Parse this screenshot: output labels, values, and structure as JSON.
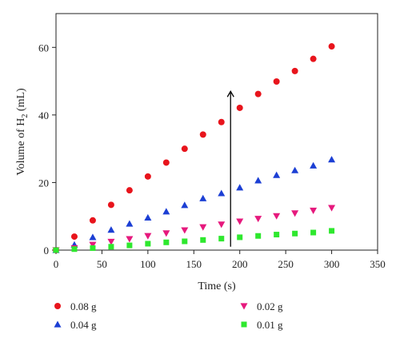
{
  "chart_data": {
    "type": "scatter",
    "xlabel": "Time (s)",
    "ylabel": {
      "prefix": "Volume of H",
      "sub": "2",
      "suffix": " (mL)"
    },
    "xlim": [
      0,
      350
    ],
    "ylim": [
      0,
      70
    ],
    "x_ticks": [
      0,
      50,
      100,
      150,
      200,
      250,
      300,
      350
    ],
    "y_ticks": [
      0,
      20,
      40,
      60
    ],
    "grid": false,
    "legend_placement": "bottom",
    "series": [
      {
        "name": "0.08 g",
        "marker": "circle",
        "color": "#e8141c",
        "x": [
          0,
          20,
          40,
          60,
          80,
          100,
          120,
          140,
          160,
          180,
          200,
          220,
          240,
          260,
          280,
          300
        ],
        "y": [
          0,
          4.0,
          8.8,
          13.4,
          17.7,
          21.8,
          25.9,
          30.0,
          34.2,
          37.9,
          42.1,
          46.2,
          49.9,
          53.0,
          56.6,
          60.3
        ]
      },
      {
        "name": "0.04 g",
        "marker": "triangle-up",
        "color": "#1c3fd4",
        "x": [
          0,
          20,
          40,
          60,
          80,
          100,
          120,
          140,
          160,
          180,
          200,
          220,
          240,
          260,
          280,
          300
        ],
        "y": [
          0,
          1.6,
          3.8,
          6.0,
          7.8,
          9.6,
          11.4,
          13.3,
          15.3,
          16.8,
          18.5,
          20.6,
          22.2,
          23.6,
          25.0,
          26.8
        ]
      },
      {
        "name": "0.02 g",
        "marker": "triangle-down",
        "color": "#e6197d",
        "x": [
          0,
          20,
          40,
          60,
          80,
          100,
          120,
          140,
          160,
          180,
          200,
          220,
          240,
          260,
          280,
          300
        ],
        "y": [
          0,
          0.6,
          1.6,
          2.5,
          3.3,
          4.2,
          5.0,
          5.9,
          6.8,
          7.6,
          8.5,
          9.3,
          10.1,
          10.9,
          11.7,
          12.5
        ]
      },
      {
        "name": "0.01 g",
        "marker": "square",
        "color": "#2ee82e",
        "x": [
          0,
          20,
          40,
          60,
          80,
          100,
          120,
          140,
          160,
          180,
          200,
          220,
          240,
          260,
          280,
          300
        ],
        "y": [
          0,
          0.3,
          0.6,
          1.0,
          1.4,
          1.9,
          2.3,
          2.6,
          3.0,
          3.4,
          3.8,
          4.2,
          4.6,
          4.9,
          5.2,
          5.7
        ]
      }
    ],
    "arrow": {
      "x": 190,
      "y_from": 1,
      "y_to": 47,
      "color": "#000000"
    }
  }
}
